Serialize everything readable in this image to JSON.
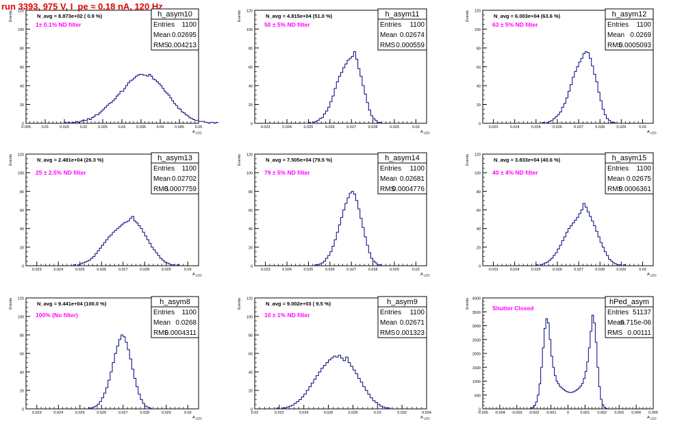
{
  "page": {
    "title": "run 3393,   975 V, I_pe ≈ 0.18 nA, 120 Hz",
    "title_color": "#e00000"
  },
  "colors": {
    "histogram_line": "#000080",
    "annotation_magenta": "#ff00ff",
    "axis": "#000000",
    "frame": "#000000"
  },
  "chart_data": [
    {
      "type": "histogram",
      "name": "h_asym10",
      "ylabel": "Events",
      "xlabel": "A_LED",
      "xlim": [
        0.005,
        0.05
      ],
      "ylim": [
        0,
        120
      ],
      "x_ticks": [
        "0.005",
        "0.01",
        "0.015",
        "0.02",
        "0.025",
        "0.03",
        "0.035",
        "0.04",
        "0.045",
        "0.05"
      ],
      "y_ticks": [
        "0",
        "20",
        "40",
        "60",
        "80",
        "100",
        "120"
      ],
      "stats": {
        "Entries": "1100",
        "Mean": "0.02695",
        "RMS": "0.004213"
      },
      "n_avg": "N_avg = 8.873e+02 ( 0.9 %)",
      "filter": "1± 0.1% ND filter",
      "bin_width": 0.0005,
      "counts": [
        1,
        0,
        1,
        0,
        1,
        1,
        2,
        1,
        2,
        3,
        3,
        3,
        5,
        4,
        6,
        7,
        9,
        9,
        11,
        13,
        15,
        17,
        19,
        21,
        22,
        24,
        26,
        29,
        31,
        34,
        34,
        37,
        40,
        43,
        45,
        46,
        48,
        50,
        51,
        52,
        52,
        51,
        51,
        50,
        52,
        50,
        47,
        46,
        44,
        42,
        40,
        37,
        34,
        32,
        30,
        27,
        24,
        21,
        19,
        16,
        15,
        12,
        11,
        9,
        8,
        6,
        5,
        4,
        3,
        3,
        2,
        2,
        2,
        1,
        1,
        0,
        1,
        1,
        0,
        1
      ],
      "first_bin": 0.015
    },
    {
      "type": "histogram",
      "name": "h_asym11",
      "ylabel": "Events",
      "xlabel": "A_LED",
      "xlim": [
        0.0225,
        0.0305
      ],
      "ylim": [
        0,
        120
      ],
      "x_ticks": [
        "0.023",
        "0.024",
        "0.025",
        "0.026",
        "0.027",
        "0.028",
        "0.029",
        "0.03"
      ],
      "y_ticks": [
        "0",
        "20",
        "40",
        "60",
        "80",
        "100",
        "120"
      ],
      "stats": {
        "Entries": "1100",
        "Mean": "0.02674",
        "RMS": "0.000559"
      },
      "n_avg": "N_avg = 4.815e+04 (51.0 %)",
      "filter": "50 ± 5% ND filter",
      "bin_width": 0.0001,
      "counts": [
        1,
        0,
        1,
        2,
        3,
        5,
        6,
        10,
        13,
        17,
        23,
        29,
        37,
        44,
        50,
        54,
        59,
        63,
        67,
        69,
        71,
        76,
        68,
        58,
        50,
        40,
        31,
        22,
        14,
        8,
        5,
        3,
        1,
        1
      ],
      "first_bin": 0.025
    },
    {
      "type": "histogram",
      "name": "h_asym12",
      "ylabel": "Events",
      "xlabel": "A_LED",
      "xlim": [
        0.0225,
        0.0305
      ],
      "ylim": [
        0,
        120
      ],
      "x_ticks": [
        "0.023",
        "0.024",
        "0.025",
        "0.026",
        "0.027",
        "0.028",
        "0.029",
        "0.03"
      ],
      "y_ticks": [
        "0",
        "20",
        "40",
        "60",
        "80",
        "100",
        "120"
      ],
      "stats": {
        "Entries": "1100",
        "Mean": "0.0269",
        "RMS": "0.0005093"
      },
      "n_avg": "N_avg = 6.003e+04 (63.6 %)",
      "filter": "63 ± 5% ND filter",
      "bin_width": 0.0001,
      "counts": [
        1,
        0,
        1,
        2,
        3,
        5,
        7,
        9,
        12,
        17,
        21,
        27,
        34,
        41,
        49,
        55,
        60,
        65,
        69,
        74,
        76,
        75,
        69,
        61,
        52,
        44,
        33,
        24,
        15,
        9,
        5,
        3,
        1,
        1
      ],
      "first_bin": 0.0253
    },
    {
      "type": "histogram",
      "name": "h_asym13",
      "ylabel": "Events",
      "xlabel": "A_LED",
      "xlim": [
        0.0225,
        0.0305
      ],
      "ylim": [
        0,
        120
      ],
      "x_ticks": [
        "0.023",
        "0.024",
        "0.025",
        "0.026",
        "0.027",
        "0.028",
        "0.029",
        "0.03"
      ],
      "y_ticks": [
        "0",
        "20",
        "40",
        "60",
        "80",
        "100",
        "120"
      ],
      "stats": {
        "Entries": "1100",
        "Mean": "0.02702",
        "RMS": "0.0007759"
      },
      "n_avg": "N_avg = 2.481e+04 (26.3 %)",
      "filter": "25 ± 2.5% ND filter",
      "bin_width": 0.0001,
      "counts": [
        1,
        0,
        1,
        2,
        3,
        4,
        5,
        6,
        8,
        10,
        13,
        16,
        19,
        22,
        25,
        28,
        31,
        33,
        36,
        38,
        40,
        42,
        44,
        46,
        47,
        48,
        51,
        53,
        48,
        46,
        43,
        40,
        36,
        32,
        28,
        24,
        20,
        17,
        14,
        11,
        8,
        6,
        4,
        3,
        2,
        1,
        1,
        0,
        1
      ],
      "first_bin": 0.0247
    },
    {
      "type": "histogram",
      "name": "h_asym14",
      "ylabel": "Events",
      "xlabel": "A_LED",
      "xlim": [
        0.0225,
        0.0305
      ],
      "ylim": [
        0,
        120
      ],
      "x_ticks": [
        "0.023",
        "0.024",
        "0.025",
        "0.026",
        "0.027",
        "0.028",
        "0.029",
        "0.03"
      ],
      "y_ticks": [
        "0",
        "20",
        "40",
        "60",
        "80",
        "100",
        "120"
      ],
      "stats": {
        "Entries": "1100",
        "Mean": "0.02681",
        "RMS": "0.0004776"
      },
      "n_avg": "N_avg = 7.505e+04 (79.5 %)",
      "filter": "79 ± 5% ND filter",
      "bin_width": 0.0001,
      "counts": [
        1,
        1,
        2,
        3,
        5,
        8,
        11,
        15,
        21,
        28,
        36,
        44,
        52,
        60,
        67,
        73,
        78,
        80,
        77,
        70,
        61,
        51,
        41,
        31,
        22,
        14,
        8,
        5,
        3,
        1,
        1
      ],
      "first_bin": 0.0253
    },
    {
      "type": "histogram",
      "name": "h_asym15",
      "ylabel": "Events",
      "xlabel": "A_LED",
      "xlim": [
        0.0225,
        0.0305
      ],
      "ylim": [
        0,
        120
      ],
      "x_ticks": [
        "0.023",
        "0.024",
        "0.025",
        "0.026",
        "0.027",
        "0.028",
        "0.029",
        "0.03"
      ],
      "y_ticks": [
        "0",
        "20",
        "40",
        "60",
        "80",
        "100",
        "120"
      ],
      "stats": {
        "Entries": "1100",
        "Mean": "0.02675",
        "RMS": "0.0006361"
      },
      "n_avg": "N_avg = 3.833e+04 (40.6 %)",
      "filter": "40 ± 4% ND filter",
      "bin_width": 0.0001,
      "counts": [
        1,
        0,
        1,
        2,
        3,
        4,
        6,
        8,
        11,
        14,
        18,
        22,
        27,
        31,
        36,
        40,
        43,
        46,
        49,
        52,
        56,
        60,
        67,
        63,
        58,
        53,
        48,
        43,
        37,
        31,
        25,
        20,
        15,
        11,
        7,
        5,
        3,
        2,
        1,
        1,
        0,
        1
      ],
      "first_bin": 0.025
    },
    {
      "type": "histogram",
      "name": "h_asym8",
      "ylabel": "Events",
      "xlabel": "A_LED",
      "xlim": [
        0.0225,
        0.0305
      ],
      "ylim": [
        0,
        120
      ],
      "x_ticks": [
        "0.023",
        "0.024",
        "0.025",
        "0.026",
        "0.027",
        "0.028",
        "0.029",
        "0.03"
      ],
      "y_ticks": [
        "0",
        "20",
        "40",
        "60",
        "80",
        "100",
        "120"
      ],
      "stats": {
        "Entries": "1100",
        "Mean": "0.0268",
        "RMS": "0.0004311"
      },
      "n_avg": "N_avg = 9.441e+04 (100.0 %)",
      "filter": "100% (No filter)",
      "bin_width": 0.0001,
      "counts": [
        1,
        1,
        2,
        3,
        5,
        8,
        12,
        17,
        23,
        31,
        40,
        50,
        60,
        68,
        75,
        80,
        78,
        72,
        64,
        54,
        43,
        33,
        24,
        16,
        10,
        6,
        3,
        2,
        1
      ],
      "first_bin": 0.0254
    },
    {
      "type": "histogram",
      "name": "h_asym9",
      "ylabel": "Events",
      "xlabel": "A_LED",
      "xlim": [
        0.02,
        0.034
      ],
      "ylim": [
        0,
        120
      ],
      "x_ticks": [
        "0.02",
        "0.022",
        "0.024",
        "0.026",
        "0.028",
        "0.03",
        "0.032",
        "0.034"
      ],
      "y_ticks": [
        "0",
        "20",
        "40",
        "60",
        "80",
        "100",
        "120"
      ],
      "stats": {
        "Entries": "1100",
        "Mean": "0.02671",
        "RMS": "0.001323"
      },
      "n_avg": "N_avg = 9.002e+03 ( 9.5 %)",
      "filter": "10 ± 1% ND filter",
      "bin_width": 0.0002,
      "counts": [
        1,
        0,
        1,
        1,
        2,
        3,
        4,
        6,
        8,
        10,
        13,
        16,
        20,
        24,
        28,
        32,
        36,
        40,
        44,
        47,
        50,
        53,
        55,
        57,
        56,
        58,
        55,
        52,
        56,
        50,
        46,
        42,
        38,
        33,
        29,
        24,
        20,
        16,
        12,
        9,
        7,
        5,
        3,
        2,
        1,
        1
      ],
      "first_bin": 0.0218
    },
    {
      "type": "histogram",
      "name": "hPed_asym",
      "ylabel": "Events",
      "xlabel": "A_LED",
      "xlim": [
        -0.005,
        0.005
      ],
      "ylim": [
        0,
        4000
      ],
      "x_ticks": [
        "-0.005",
        "-0.004",
        "-0.003",
        "-0.002",
        "-0.001",
        "0",
        "0.001",
        "0.002",
        "0.003",
        "0.004",
        "0.005"
      ],
      "y_ticks": [
        "0",
        "500",
        "1000",
        "1500",
        "2000",
        "2500",
        "3000",
        "3500",
        "4000"
      ],
      "stats": {
        "Entries": "51137",
        "Mean": "-9.715e-06",
        "RMS": "0.00111"
      },
      "filter": "Shutter Closed",
      "bin_width": 0.0001,
      "counts": [
        30,
        60,
        120,
        250,
        500,
        900,
        1500,
        2200,
        2900,
        3250,
        3100,
        2500,
        1900,
        1500,
        1200,
        1000,
        900,
        800,
        750,
        700,
        650,
        620,
        600,
        590,
        600,
        620,
        650,
        700,
        750,
        820,
        920,
        1100,
        1350,
        1700,
        2200,
        2800,
        3380,
        3100,
        2400,
        1500,
        800,
        350,
        150,
        60,
        20
      ],
      "first_bin": -0.0022
    }
  ]
}
